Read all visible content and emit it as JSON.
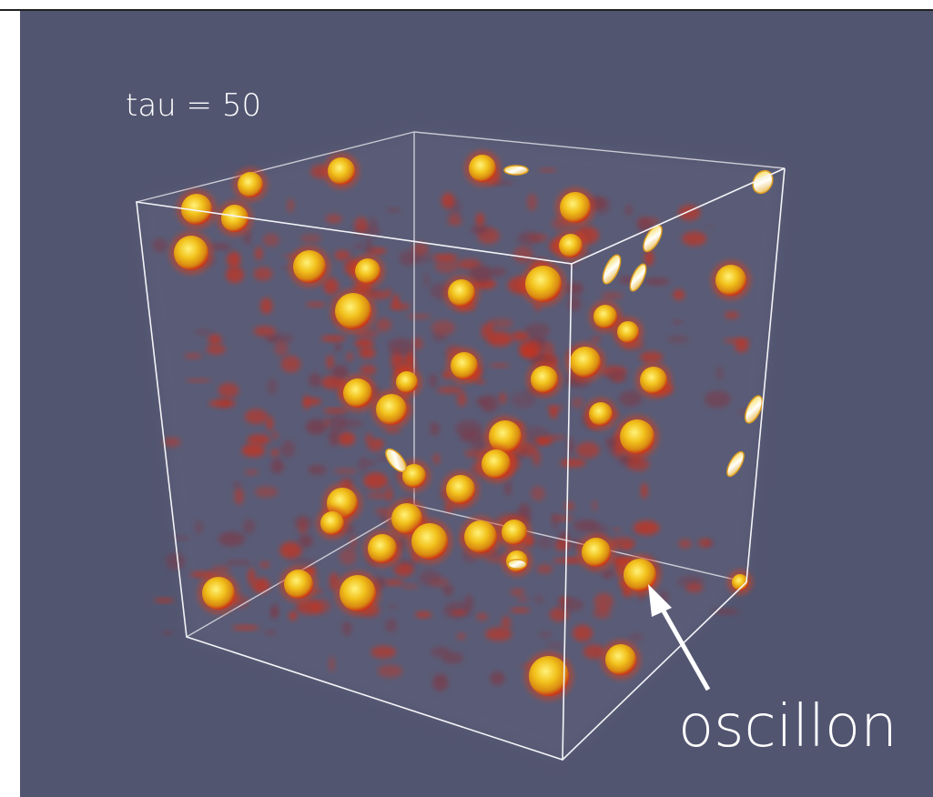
{
  "labels": {
    "time": "tau = 50",
    "annotation": "oscillon"
  }
}
